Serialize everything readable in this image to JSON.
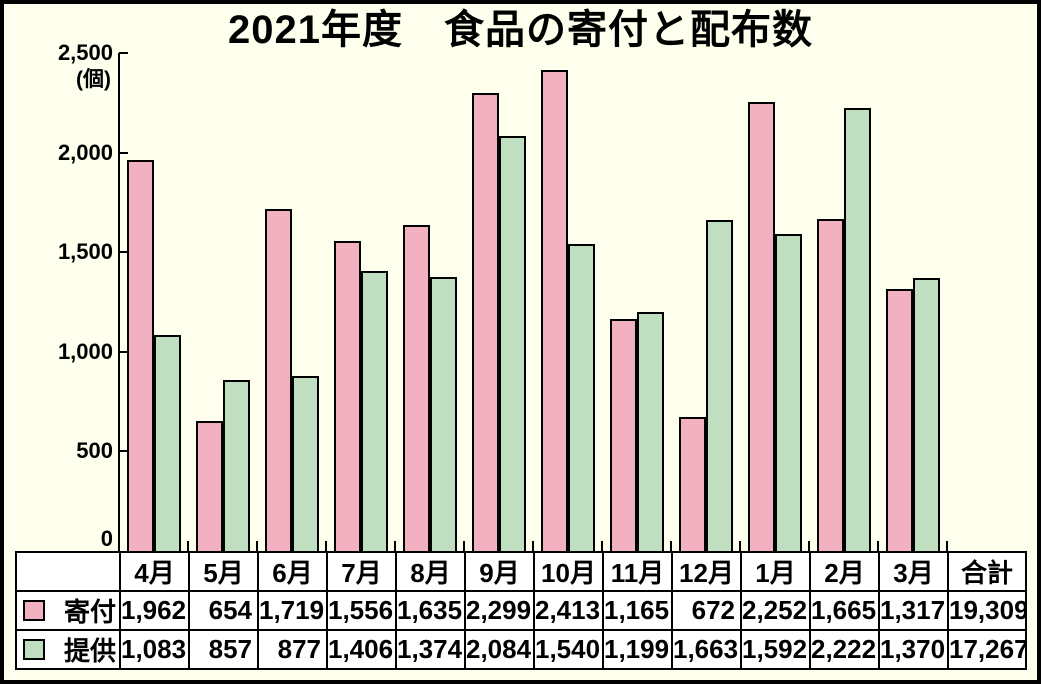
{
  "frame": {
    "title": "2021年度　食品の寄付と配布数"
  },
  "chart_data": {
    "type": "bar",
    "title": "2021年度　食品の寄付と配布数",
    "unit_label": "(個)",
    "categories": [
      "4月",
      "5月",
      "6月",
      "7月",
      "8月",
      "9月",
      "10月",
      "11月",
      "12月",
      "1月",
      "2月",
      "3月"
    ],
    "series": [
      {
        "name": "寄付",
        "color": "#F2B1C1",
        "values": [
          1962,
          654,
          1719,
          1556,
          1635,
          2299,
          2413,
          1165,
          672,
          2252,
          1665,
          1317
        ],
        "total": 19309
      },
      {
        "name": "提供",
        "color": "#C0DEC0",
        "values": [
          1083,
          857,
          877,
          1406,
          1374,
          2084,
          1540,
          1199,
          1663,
          1592,
          2222,
          1370
        ],
        "total": 17267
      }
    ],
    "y_axis": {
      "min": 0,
      "max": 2500,
      "step": 500,
      "tick_labels": [
        "2,500",
        "2,000",
        "1,500",
        "1,000",
        "500",
        "0"
      ]
    },
    "total_column_label": "合計",
    "legend_position": "table",
    "grid": false
  },
  "colors": {
    "background": "#FFFFEE",
    "table_background": "#FFFFFF",
    "line": "#000000",
    "donation_bar": "#F2B1C1",
    "provision_bar": "#C0DEC0"
  }
}
